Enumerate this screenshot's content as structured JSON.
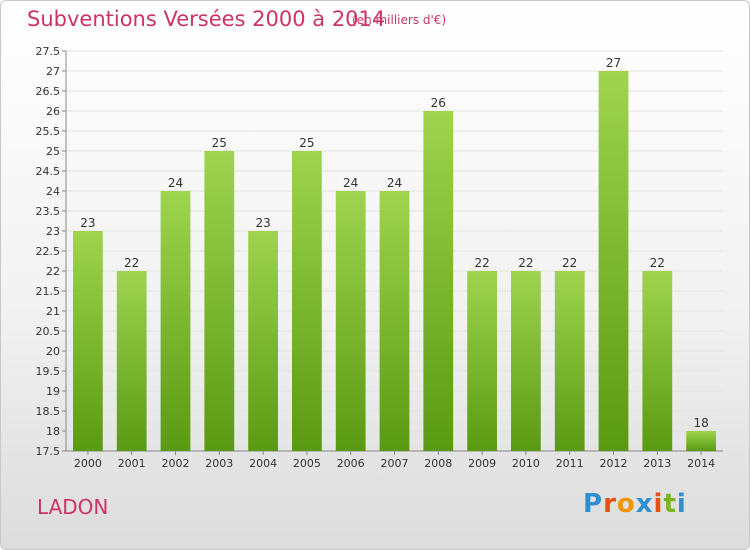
{
  "header": {
    "title": "Subventions Versées 2000 à 2014",
    "subtitle": "(en milliers d'€)"
  },
  "commune": "LADON",
  "logo": {
    "text": "Proxiti",
    "letter_colors": [
      "#2f8fd0",
      "#e94e1b",
      "#f29400",
      "#2f8fd0",
      "#e94e1b",
      "#7ab51d",
      "#2f8fd0"
    ]
  },
  "colors": {
    "accent": "#cc3366",
    "bar_top": "#9fd44e",
    "bar_bottom": "#5a9a12"
  },
  "chart_data": {
    "type": "bar",
    "categories": [
      "2000",
      "2001",
      "2002",
      "2003",
      "2004",
      "2005",
      "2006",
      "2007",
      "2008",
      "2009",
      "2010",
      "2011",
      "2012",
      "2013",
      "2014"
    ],
    "values": [
      23,
      22,
      24,
      25,
      23,
      25,
      24,
      24,
      26,
      22,
      22,
      22,
      27,
      22,
      18
    ],
    "ylim": [
      17.5,
      27.5
    ],
    "yticks": [
      17.5,
      18,
      18.5,
      19,
      19.5,
      20,
      20.5,
      21,
      21.5,
      22,
      22.5,
      23,
      23.5,
      24,
      24.5,
      25,
      25.5,
      26,
      26.5,
      27,
      27.5
    ],
    "grid": true,
    "title": "Subventions Versées 2000 à 2014",
    "xlabel": "",
    "ylabel": ""
  }
}
